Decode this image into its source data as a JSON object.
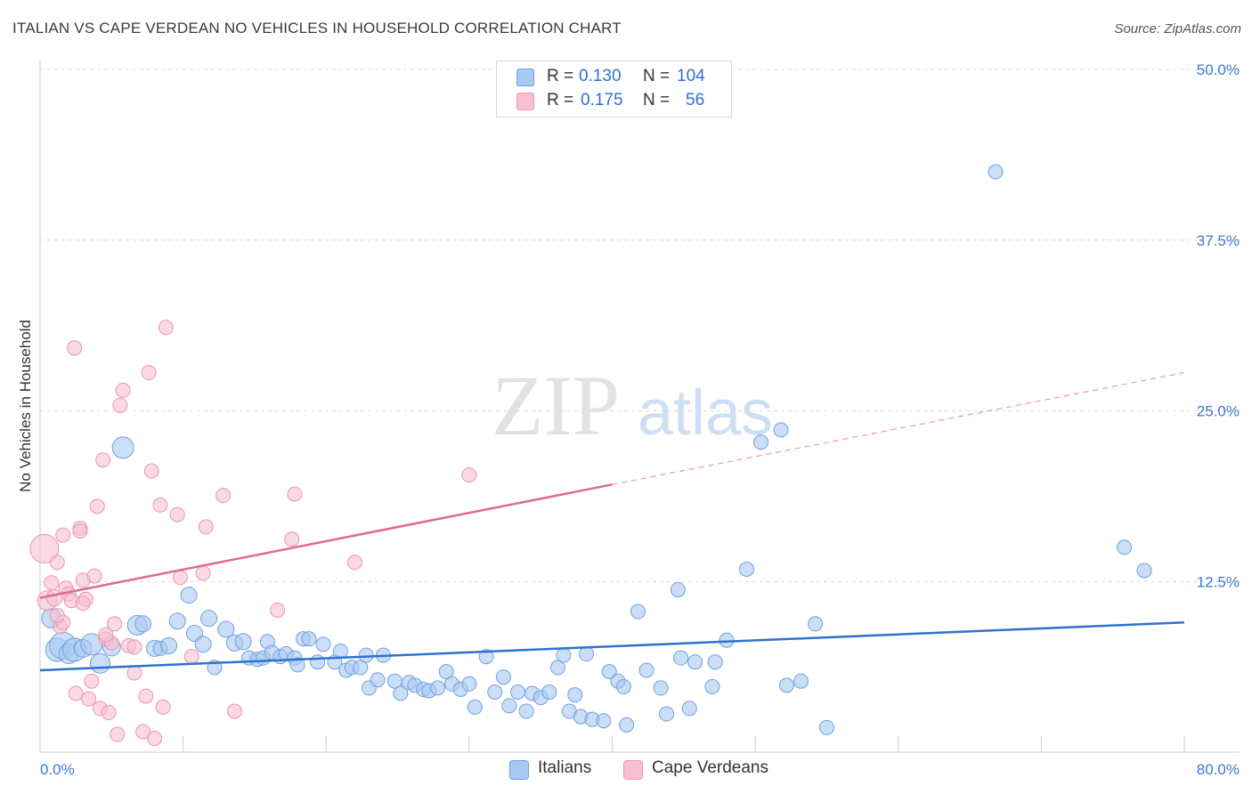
{
  "title": "ITALIAN VS CAPE VERDEAN NO VEHICLES IN HOUSEHOLD CORRELATION CHART",
  "source": "Source: ZipAtlas.com",
  "watermark": {
    "zip": "ZIP",
    "atlas": "atlas"
  },
  "legend": {
    "italians": {
      "r_label": "R =",
      "r_value": "0.130",
      "n_label": "N =",
      "n_value": "104"
    },
    "cape_verdeans": {
      "r_label": "R =",
      "r_value": "0.175",
      "n_label": "N =",
      "n_value": "56"
    }
  },
  "bottom_legend": {
    "italians": "Italians",
    "cape_verdeans": "Cape Verdeans"
  },
  "colors": {
    "italians_fill": "#a9c8f2",
    "italians_stroke": "#6fa0e0",
    "italians_line": "#2f72d0",
    "cape_fill": "#f7c0d0",
    "cape_stroke": "#eb96b0",
    "cape_line": "#e06a92",
    "tick_label": "#3b78d0",
    "grid": "#dcdcdc"
  },
  "chart_data": {
    "type": "scatter",
    "title": "ITALIAN VS CAPE VERDEAN NO VEHICLES IN HOUSEHOLD CORRELATION CHART",
    "xlabel": "",
    "ylabel": "No Vehicles in Household",
    "xlim": [
      0,
      80
    ],
    "ylim": [
      0,
      50
    ],
    "x_tick_labels": [
      "0.0%",
      "80.0%"
    ],
    "y_ticks": [
      12.5,
      25,
      37.5,
      50
    ],
    "y_tick_labels": [
      "12.5%",
      "25.0%",
      "37.5%",
      "50.0%"
    ],
    "grid": true,
    "legend_position": "top-center",
    "series": [
      {
        "name": "Italians",
        "trend": {
          "x": [
            0,
            80
          ],
          "y": [
            6.0,
            9.5
          ],
          "style": "solid"
        },
        "points": [
          [
            0.8,
            9.8,
            11
          ],
          [
            1.2,
            7.5,
            13
          ],
          [
            1.6,
            7.8,
            15
          ],
          [
            2.0,
            7.2,
            11
          ],
          [
            2.4,
            7.5,
            13
          ],
          [
            3.0,
            7.6,
            10
          ],
          [
            3.6,
            7.9,
            12
          ],
          [
            4.2,
            6.5,
            11
          ],
          [
            5.0,
            7.7,
            10
          ],
          [
            5.8,
            22.3,
            12
          ],
          [
            6.8,
            9.3,
            11
          ],
          [
            7.2,
            9.4,
            9
          ],
          [
            8.0,
            7.6,
            9
          ],
          [
            8.4,
            7.6,
            8
          ],
          [
            9.0,
            7.8,
            9
          ],
          [
            9.6,
            9.6,
            9
          ],
          [
            10.4,
            11.5,
            9
          ],
          [
            10.8,
            8.7,
            9
          ],
          [
            11.4,
            7.9,
            9
          ],
          [
            12.2,
            6.2,
            8
          ],
          [
            11.8,
            9.8,
            9
          ],
          [
            13.0,
            9.0,
            9
          ],
          [
            13.6,
            8.0,
            9
          ],
          [
            14.2,
            8.1,
            9
          ],
          [
            14.6,
            6.9,
            8
          ],
          [
            15.2,
            6.8,
            8
          ],
          [
            15.6,
            6.9,
            8
          ],
          [
            15.9,
            8.1,
            8
          ],
          [
            16.2,
            7.3,
            8
          ],
          [
            16.8,
            7.0,
            8
          ],
          [
            17.2,
            7.2,
            8
          ],
          [
            17.8,
            6.9,
            8
          ],
          [
            18.0,
            6.4,
            8
          ],
          [
            18.4,
            8.3,
            8
          ],
          [
            18.8,
            8.3,
            8
          ],
          [
            19.4,
            6.6,
            8
          ],
          [
            19.8,
            7.9,
            8
          ],
          [
            20.6,
            6.6,
            8
          ],
          [
            21.0,
            7.4,
            8
          ],
          [
            21.4,
            6.0,
            8
          ],
          [
            21.8,
            6.2,
            8
          ],
          [
            22.4,
            6.2,
            8
          ],
          [
            22.8,
            7.1,
            8
          ],
          [
            23.0,
            4.7,
            8
          ],
          [
            23.6,
            5.3,
            8
          ],
          [
            24.0,
            7.1,
            8
          ],
          [
            24.8,
            5.2,
            8
          ],
          [
            25.2,
            4.3,
            8
          ],
          [
            25.8,
            5.1,
            8
          ],
          [
            26.2,
            4.9,
            8
          ],
          [
            26.8,
            4.6,
            8
          ],
          [
            27.2,
            4.5,
            8
          ],
          [
            27.8,
            4.7,
            8
          ],
          [
            28.4,
            5.9,
            8
          ],
          [
            28.8,
            5.0,
            8
          ],
          [
            29.4,
            4.6,
            8
          ],
          [
            30.0,
            5.0,
            8
          ],
          [
            30.4,
            3.3,
            8
          ],
          [
            31.2,
            7.0,
            8
          ],
          [
            31.8,
            4.4,
            8
          ],
          [
            32.4,
            5.5,
            8
          ],
          [
            32.8,
            3.4,
            8
          ],
          [
            33.4,
            4.4,
            8
          ],
          [
            34.0,
            3.0,
            8
          ],
          [
            34.4,
            4.3,
            8
          ],
          [
            35.0,
            4.0,
            8
          ],
          [
            35.6,
            4.4,
            8
          ],
          [
            36.2,
            6.2,
            8
          ],
          [
            36.6,
            7.1,
            8
          ],
          [
            37.0,
            3.0,
            8
          ],
          [
            37.4,
            4.2,
            8
          ],
          [
            37.8,
            2.6,
            8
          ],
          [
            38.2,
            7.2,
            8
          ],
          [
            38.6,
            2.4,
            8
          ],
          [
            39.4,
            2.3,
            8
          ],
          [
            39.8,
            5.9,
            8
          ],
          [
            40.4,
            5.2,
            8
          ],
          [
            40.8,
            4.8,
            8
          ],
          [
            41.0,
            2.0,
            8
          ],
          [
            41.8,
            10.3,
            8
          ],
          [
            42.4,
            6.0,
            8
          ],
          [
            43.4,
            4.7,
            8
          ],
          [
            43.8,
            2.8,
            8
          ],
          [
            44.6,
            11.9,
            8
          ],
          [
            44.8,
            6.9,
            8
          ],
          [
            45.4,
            3.2,
            8
          ],
          [
            45.8,
            6.6,
            8
          ],
          [
            47.0,
            4.8,
            8
          ],
          [
            47.2,
            6.6,
            8
          ],
          [
            48.0,
            8.2,
            8
          ],
          [
            49.4,
            13.4,
            8
          ],
          [
            50.4,
            22.7,
            8
          ],
          [
            51.8,
            23.6,
            8
          ],
          [
            52.2,
            4.9,
            8
          ],
          [
            53.2,
            5.2,
            8
          ],
          [
            54.2,
            9.4,
            8
          ],
          [
            55.0,
            1.8,
            8
          ],
          [
            66.8,
            42.5,
            8
          ],
          [
            75.8,
            15.0,
            8
          ],
          [
            77.2,
            13.3,
            8
          ]
        ]
      },
      {
        "name": "Cape Verdeans",
        "trend": {
          "x": [
            0,
            40,
            80
          ],
          "y": [
            11.3,
            19.6,
            27.8
          ],
          "style": "solid-then-dashed"
        },
        "points": [
          [
            0.3,
            14.9,
            16
          ],
          [
            0.5,
            11.1,
            11
          ],
          [
            1.0,
            11.3,
            9
          ],
          [
            1.2,
            13.9,
            8
          ],
          [
            1.4,
            9.2,
            8
          ],
          [
            1.6,
            9.5,
            8
          ],
          [
            1.8,
            12.0,
            8
          ],
          [
            2.0,
            11.6,
            8
          ],
          [
            2.2,
            11.1,
            8
          ],
          [
            2.4,
            29.6,
            8
          ],
          [
            2.5,
            4.3,
            8
          ],
          [
            2.8,
            16.4,
            8
          ],
          [
            3.0,
            12.6,
            8
          ],
          [
            3.2,
            11.2,
            8
          ],
          [
            3.4,
            3.9,
            8
          ],
          [
            3.6,
            5.2,
            8
          ],
          [
            3.8,
            12.9,
            8
          ],
          [
            4.0,
            18.0,
            8
          ],
          [
            4.2,
            3.2,
            8
          ],
          [
            4.4,
            21.4,
            8
          ],
          [
            4.6,
            8.3,
            8
          ],
          [
            4.8,
            2.9,
            8
          ],
          [
            5.0,
            8.0,
            8
          ],
          [
            5.2,
            9.4,
            8
          ],
          [
            5.4,
            1.3,
            8
          ],
          [
            5.6,
            25.4,
            8
          ],
          [
            5.8,
            26.5,
            8
          ],
          [
            6.2,
            7.8,
            8
          ],
          [
            6.6,
            5.8,
            8
          ],
          [
            7.2,
            1.5,
            8
          ],
          [
            7.4,
            4.1,
            8
          ],
          [
            7.6,
            27.8,
            8
          ],
          [
            7.8,
            20.6,
            8
          ],
          [
            8.0,
            1.0,
            8
          ],
          [
            8.4,
            18.1,
            8
          ],
          [
            8.6,
            3.3,
            8
          ],
          [
            8.8,
            31.1,
            8
          ],
          [
            9.6,
            17.4,
            8
          ],
          [
            9.8,
            12.8,
            8
          ],
          [
            10.6,
            7.0,
            8
          ],
          [
            11.4,
            13.1,
            8
          ],
          [
            11.6,
            16.5,
            8
          ],
          [
            12.8,
            18.8,
            8
          ],
          [
            13.6,
            3.0,
            8
          ],
          [
            16.6,
            10.4,
            8
          ],
          [
            17.6,
            15.6,
            8
          ],
          [
            17.8,
            18.9,
            8
          ],
          [
            22.0,
            13.9,
            8
          ],
          [
            30.0,
            20.3,
            8
          ],
          [
            1.6,
            15.9,
            8
          ],
          [
            2.8,
            16.2,
            8
          ],
          [
            4.6,
            8.6,
            8
          ],
          [
            6.6,
            7.7,
            8
          ],
          [
            3.0,
            10.9,
            8
          ],
          [
            1.2,
            10.0,
            8
          ],
          [
            0.8,
            12.4,
            8
          ]
        ]
      }
    ]
  }
}
